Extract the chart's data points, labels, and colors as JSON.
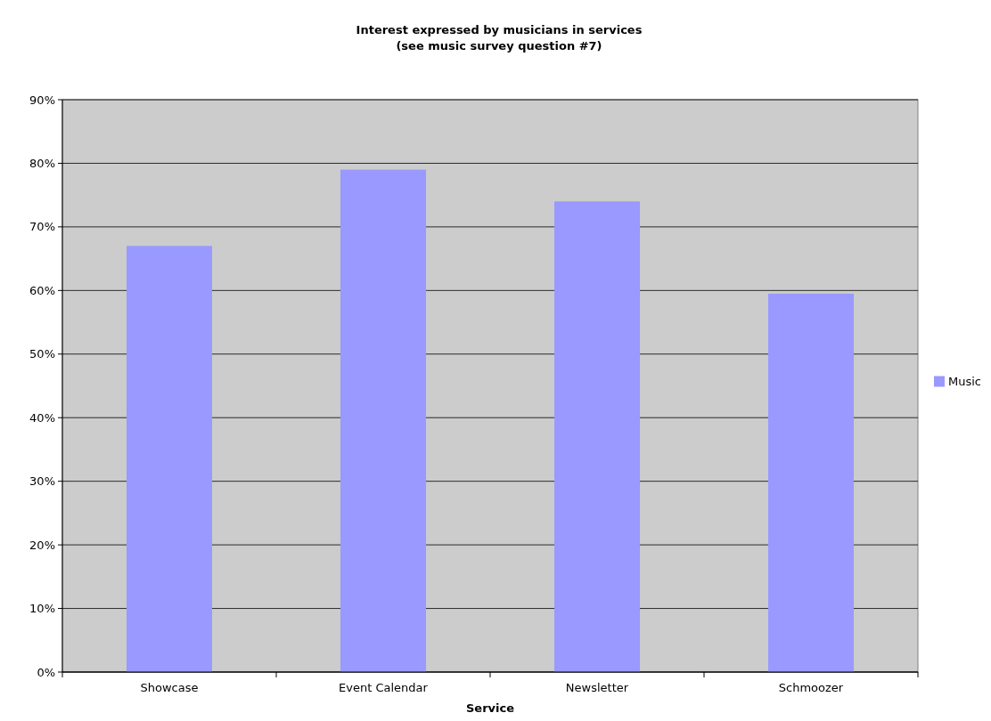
{
  "chart_data": {
    "type": "bar",
    "title": "Interest expressed by musicians in services",
    "subtitle": "(see music survey question #7)",
    "xlabel": "Service",
    "categories": [
      "Showcase",
      "Event Calendar",
      "Newsletter",
      "Schmoozer"
    ],
    "series": [
      {
        "name": "Music",
        "color": "#9999ff",
        "values": [
          67,
          79,
          74,
          59.5
        ]
      }
    ],
    "ylim": [
      0,
      90
    ],
    "yticks": [
      {
        "value": 0,
        "label": "0%"
      },
      {
        "value": 10,
        "label": "10%"
      },
      {
        "value": 20,
        "label": "20%"
      },
      {
        "value": 30,
        "label": "30%"
      },
      {
        "value": 40,
        "label": "40%"
      },
      {
        "value": 50,
        "label": "50%"
      },
      {
        "value": 60,
        "label": "60%"
      },
      {
        "value": 70,
        "label": "70%"
      },
      {
        "value": 80,
        "label": "80%"
      },
      {
        "value": 90,
        "label": "90%"
      }
    ],
    "grid": "y",
    "legend": "right"
  }
}
